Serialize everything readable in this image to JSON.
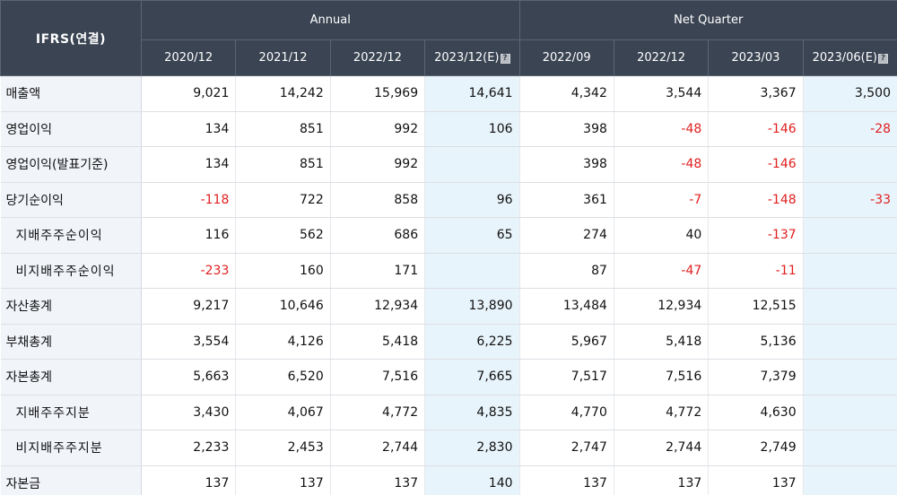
{
  "header": {
    "corner": "IFRS(연결)",
    "groups": {
      "annual": "Annual",
      "quarter": "Net Quarter"
    },
    "periods": [
      "2020/12",
      "2021/12",
      "2022/12",
      "2023/12(E)",
      "2022/09",
      "2022/12",
      "2023/03",
      "2023/06(E)"
    ],
    "estimate_columns": [
      3,
      7
    ],
    "estimate_icon": "info-icon"
  },
  "colors": {
    "header_bg": "#3a4452",
    "label_bg": "#f1f4f9",
    "estimate_bg": "#e8f4fb",
    "negative": "#e02020"
  },
  "rows": [
    {
      "label": "매출액",
      "indent": false,
      "values": [
        "9,021",
        "14,242",
        "15,969",
        "14,641",
        "4,342",
        "3,544",
        "3,367",
        "3,500"
      ]
    },
    {
      "label": "영업이익",
      "indent": false,
      "values": [
        "134",
        "851",
        "992",
        "106",
        "398",
        "-48",
        "-146",
        "-28"
      ]
    },
    {
      "label": "영업이익(발표기준)",
      "indent": false,
      "values": [
        "134",
        "851",
        "992",
        "",
        "398",
        "-48",
        "-146",
        ""
      ]
    },
    {
      "label": "당기순이익",
      "indent": false,
      "values": [
        "-118",
        "722",
        "858",
        "96",
        "361",
        "-7",
        "-148",
        "-33"
      ]
    },
    {
      "label": "지배주주순이익",
      "indent": true,
      "values": [
        "116",
        "562",
        "686",
        "65",
        "274",
        "40",
        "-137",
        ""
      ]
    },
    {
      "label": "비지배주주순이익",
      "indent": true,
      "values": [
        "-233",
        "160",
        "171",
        "",
        "87",
        "-47",
        "-11",
        ""
      ]
    },
    {
      "label": "자산총계",
      "indent": false,
      "values": [
        "9,217",
        "10,646",
        "12,934",
        "13,890",
        "13,484",
        "12,934",
        "12,515",
        ""
      ]
    },
    {
      "label": "부채총계",
      "indent": false,
      "values": [
        "3,554",
        "4,126",
        "5,418",
        "6,225",
        "5,967",
        "5,418",
        "5,136",
        ""
      ]
    },
    {
      "label": "자본총계",
      "indent": false,
      "values": [
        "5,663",
        "6,520",
        "7,516",
        "7,665",
        "7,517",
        "7,516",
        "7,379",
        ""
      ]
    },
    {
      "label": "지배주주지분",
      "indent": true,
      "values": [
        "3,430",
        "4,067",
        "4,772",
        "4,835",
        "4,770",
        "4,772",
        "4,630",
        ""
      ]
    },
    {
      "label": "비지배주주지분",
      "indent": true,
      "values": [
        "2,233",
        "2,453",
        "2,744",
        "2,830",
        "2,747",
        "2,744",
        "2,749",
        ""
      ]
    },
    {
      "label": "자본금",
      "indent": false,
      "values": [
        "137",
        "137",
        "137",
        "140",
        "137",
        "137",
        "137",
        ""
      ]
    }
  ]
}
